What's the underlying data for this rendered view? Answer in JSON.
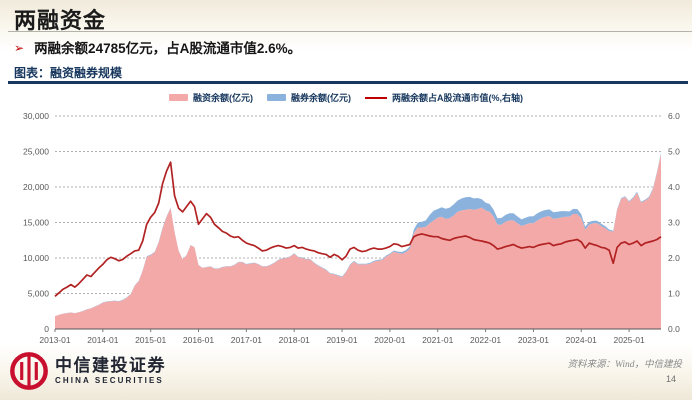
{
  "slide": {
    "title": "两融资金",
    "bullet_marker": "➢",
    "bullet": "两融余额24785亿元，占A股流通市值2.6%。",
    "chart_caption": "图表：融资融券规模",
    "source": "资料来源：Wind，中信建投",
    "page_number": "14",
    "logo": {
      "cn": "中信建投证券",
      "en": "CHINA SECURITIES"
    }
  },
  "colors": {
    "title_text": "#1b1b1b",
    "accent_red": "#c00000",
    "navy": "#17375e",
    "area_rongzi": "#f4a9a9",
    "area_rongquan": "#8ab2dc",
    "line_ratio": "#b22222",
    "gridline": "#b0b0b0",
    "axis_text": "#595959",
    "logo_red": "#c8102e"
  },
  "chart_data": {
    "type": "area",
    "title": "融资融券规模",
    "stacked": true,
    "grid": "dashed-horizontal",
    "legend_position": "top-center",
    "legend": [
      {
        "label": "融资余额(亿元)",
        "type": "area",
        "color": "#f4a9a9"
      },
      {
        "label": "融券余额(亿元)",
        "type": "area",
        "color": "#8ab2dc"
      },
      {
        "label": "两融余额占A股流通市值(%,右轴)",
        "type": "line",
        "color": "#c00000"
      }
    ],
    "left_axis": {
      "min": 0,
      "max": 30000,
      "step": 5000,
      "ticks": [
        "0",
        "5,000",
        "10,000",
        "15,000",
        "20,000",
        "25,000",
        "30,000"
      ]
    },
    "right_axis": {
      "min": 0,
      "max": 6,
      "step": 1,
      "ticks": [
        "0.0",
        "1.0",
        "2.0",
        "3.0",
        "4.0",
        "5.0",
        "6.0"
      ]
    },
    "x_ticks": [
      "2013-01",
      "2014-01",
      "2015-01",
      "2016-01",
      "2017-01",
      "2018-01",
      "2019-01",
      "2020-01",
      "2021-01",
      "2022-01",
      "2023-01",
      "2024-01",
      "2025-01"
    ],
    "x_start": "2013-01",
    "x_end": "2025-09",
    "x_step_months": 1,
    "series": [
      {
        "name": "融资余额(亿元)",
        "axis": "left",
        "values": [
          1800,
          2000,
          2150,
          2230,
          2320,
          2220,
          2350,
          2520,
          2750,
          2900,
          3150,
          3400,
          3700,
          3850,
          3900,
          3950,
          3880,
          4060,
          4420,
          4870,
          6080,
          6700,
          8200,
          10170,
          10400,
          10800,
          12200,
          14200,
          15800,
          17000,
          13600,
          11000,
          9800,
          10400,
          11800,
          11500,
          9000,
          8600,
          8700,
          8800,
          8500,
          8500,
          8700,
          8800,
          8800,
          9000,
          9400,
          9400,
          9100,
          9200,
          9300,
          9100,
          8800,
          8800,
          9000,
          9300,
          9700,
          9900,
          10000,
          10200,
          10600,
          10100,
          10000,
          9800,
          9800,
          9300,
          8900,
          8600,
          8300,
          7800,
          7700,
          7500,
          7300,
          8000,
          9000,
          9500,
          9100,
          9100,
          9100,
          9200,
          9500,
          9600,
          9700,
          10200,
          10500,
          10900,
          10700,
          10600,
          10800,
          11300,
          13500,
          14300,
          14300,
          14400,
          14900,
          15300,
          15700,
          15800,
          15500,
          15600,
          16000,
          16500,
          16700,
          16800,
          16900,
          16800,
          16900,
          17100,
          16700,
          16500,
          15800,
          14700,
          14700,
          15100,
          15300,
          15300,
          14900,
          14500,
          14700,
          14900,
          14900,
          15300,
          15600,
          15800,
          15900,
          15500,
          15600,
          15700,
          15800,
          15800,
          16200,
          16200,
          15600,
          14000,
          14700,
          14900,
          14900,
          14500,
          14200,
          13800,
          13700,
          16800,
          18300,
          18600,
          17900,
          18400,
          19200,
          17800,
          18100,
          18500,
          19700,
          22000,
          24600
        ]
      },
      {
        "name": "融券余额(亿元)",
        "axis": "left",
        "values": [
          15,
          18,
          20,
          22,
          25,
          25,
          28,
          30,
          32,
          35,
          38,
          40,
          42,
          44,
          45,
          46,
          48,
          50,
          55,
          60,
          65,
          70,
          75,
          80,
          80,
          85,
          90,
          95,
          90,
          90,
          60,
          40,
          30,
          30,
          35,
          35,
          35,
          35,
          36,
          38,
          38,
          38,
          40,
          42,
          44,
          46,
          48,
          48,
          48,
          50,
          52,
          52,
          50,
          50,
          52,
          55,
          58,
          60,
          60,
          60,
          62,
          62,
          64,
          64,
          66,
          70,
          72,
          75,
          78,
          80,
          82,
          85,
          88,
          90,
          92,
          95,
          95,
          95,
          100,
          110,
          120,
          130,
          135,
          140,
          140,
          160,
          200,
          240,
          280,
          320,
          500,
          700,
          800,
          900,
          1200,
          1370,
          1200,
          1350,
          1450,
          1500,
          1550,
          1600,
          1700,
          1750,
          1700,
          1600,
          1550,
          1200,
          1100,
          1100,
          1000,
          900,
          950,
          970,
          1000,
          1000,
          950,
          930,
          980,
          960,
          980,
          1000,
          990,
          960,
          940,
          930,
          920,
          900,
          800,
          750,
          720,
          700,
          550,
          400,
          380,
          360,
          340,
          320,
          290,
          200,
          130,
          100,
          110,
          110,
          120,
          130,
          140,
          130,
          130,
          135,
          140,
          150,
          185
        ]
      },
      {
        "name": "两融余额占A股流通市值(%,右轴)",
        "axis": "right",
        "values": [
          0.92,
          1.02,
          1.12,
          1.18,
          1.25,
          1.18,
          1.28,
          1.4,
          1.52,
          1.48,
          1.6,
          1.72,
          1.82,
          1.95,
          2.02,
          1.98,
          1.92,
          1.96,
          2.05,
          2.12,
          2.2,
          2.22,
          2.48,
          2.95,
          3.15,
          3.28,
          3.55,
          4.1,
          4.45,
          4.7,
          3.75,
          3.4,
          3.3,
          3.45,
          3.6,
          3.45,
          2.95,
          3.1,
          3.25,
          3.15,
          2.95,
          2.85,
          2.75,
          2.7,
          2.62,
          2.58,
          2.6,
          2.5,
          2.42,
          2.38,
          2.35,
          2.28,
          2.2,
          2.22,
          2.28,
          2.32,
          2.35,
          2.32,
          2.28,
          2.3,
          2.35,
          2.28,
          2.3,
          2.25,
          2.22,
          2.2,
          2.15,
          2.12,
          2.1,
          2.02,
          2.1,
          2.05,
          1.95,
          2.05,
          2.25,
          2.3,
          2.22,
          2.18,
          2.2,
          2.25,
          2.28,
          2.25,
          2.25,
          2.28,
          2.32,
          2.4,
          2.38,
          2.32,
          2.35,
          2.38,
          2.6,
          2.65,
          2.68,
          2.65,
          2.62,
          2.6,
          2.6,
          2.55,
          2.52,
          2.5,
          2.55,
          2.58,
          2.6,
          2.62,
          2.58,
          2.52,
          2.5,
          2.48,
          2.45,
          2.42,
          2.35,
          2.25,
          2.28,
          2.32,
          2.35,
          2.38,
          2.32,
          2.28,
          2.3,
          2.32,
          2.3,
          2.35,
          2.38,
          2.4,
          2.42,
          2.35,
          2.38,
          2.4,
          2.45,
          2.48,
          2.5,
          2.52,
          2.45,
          2.28,
          2.42,
          2.38,
          2.35,
          2.3,
          2.28,
          2.22,
          1.85,
          2.3,
          2.42,
          2.45,
          2.38,
          2.42,
          2.48,
          2.35,
          2.42,
          2.45,
          2.48,
          2.52,
          2.6
        ]
      }
    ]
  }
}
